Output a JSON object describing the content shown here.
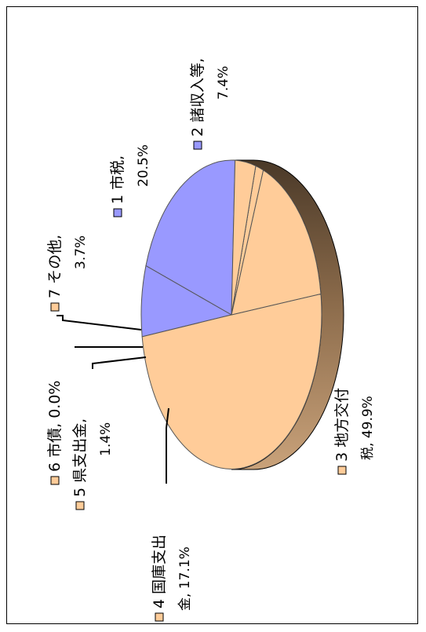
{
  "chart_data": {
    "type": "pie",
    "title": "",
    "legend": "none",
    "slices": [
      {
        "id": "1",
        "name": "市税",
        "value": 20.5,
        "value_label": "20.5%",
        "color": "#9999ff"
      },
      {
        "id": "2",
        "name": "諸収入等",
        "value": 7.4,
        "value_label": "7.4%",
        "color": "#9999ff"
      },
      {
        "id": "3",
        "name": "地方交付税",
        "value": 49.9,
        "value_label": "49.9%",
        "color": "#ffcc99"
      },
      {
        "id": "4",
        "name": "国庫支出金",
        "value": 17.1,
        "value_label": "17.1%",
        "color": "#ffcc99"
      },
      {
        "id": "5",
        "name": "県支出金",
        "value": 1.4,
        "value_label": "1.4%",
        "color": "#ffcc99"
      },
      {
        "id": "6",
        "name": "市債",
        "value": 0.0,
        "value_label": "0.0%",
        "color": "#ffcc99"
      },
      {
        "id": "7",
        "name": "その他",
        "value": 3.7,
        "value_label": "3.7%",
        "color": "#ffcc99"
      }
    ],
    "labels": {
      "s1": {
        "line1": "1 市税,",
        "line2": "20.5%"
      },
      "s2": {
        "line1": "2 諸収入等,",
        "line2": "7.4%"
      },
      "s3": {
        "line1": "3 地方交付",
        "line2": "税, 49.9%"
      },
      "s4": {
        "line1": "4 国庫支出",
        "line2": "金, 17.1%"
      },
      "s5": {
        "line1": "5 県支出金,",
        "line2": "1.4%"
      },
      "s6": {
        "line1": "6 市債, 0.0%"
      },
      "s7": {
        "line1": "7 その他,",
        "line2": "3.7%"
      }
    }
  }
}
